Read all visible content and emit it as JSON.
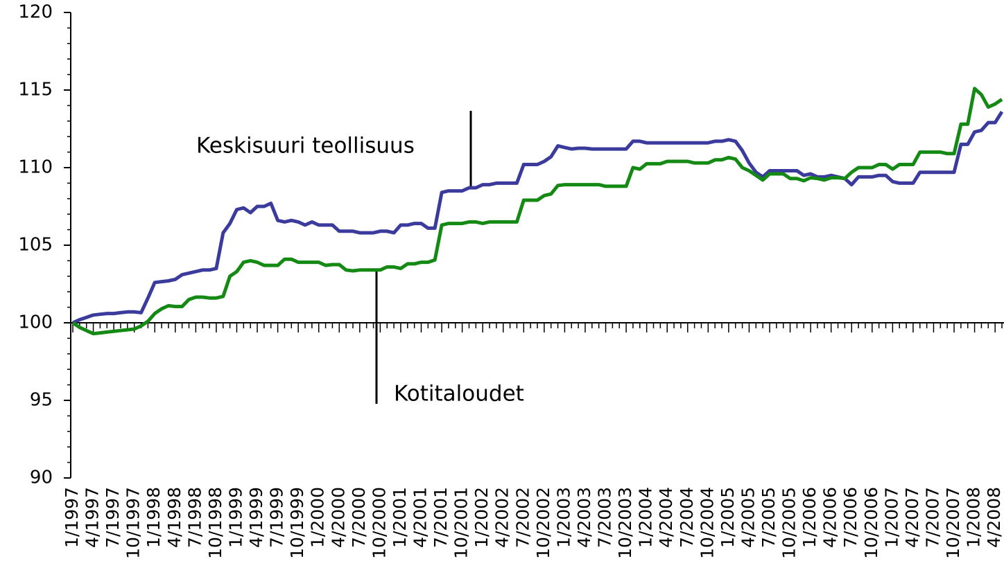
{
  "chart_data": {
    "type": "line",
    "categories": [
      "1/1997",
      null,
      null,
      "4/1997",
      null,
      null,
      "7/1997",
      null,
      null,
      "10/1997",
      null,
      null,
      "1/1998",
      null,
      null,
      "4/1998",
      null,
      null,
      "7/1998",
      null,
      null,
      "10/1998",
      null,
      null,
      "1/1999",
      null,
      null,
      "4/1999",
      null,
      null,
      "7/1999",
      null,
      null,
      "10/1999",
      null,
      null,
      "1/2000",
      null,
      null,
      "4/2000",
      null,
      null,
      "7/2000",
      null,
      null,
      "10/2000",
      null,
      null,
      "1/2001",
      null,
      null,
      "4/2001",
      null,
      null,
      "7/2001",
      null,
      null,
      "10/2001",
      null,
      null,
      "1/2002",
      null,
      null,
      "4/2002",
      null,
      null,
      "7/2002",
      null,
      null,
      "10/2002",
      null,
      null,
      "1/2003",
      null,
      null,
      "4/2003",
      null,
      null,
      "7/2003",
      null,
      null,
      "10/2003",
      null,
      null,
      "1/2004",
      null,
      null,
      "4/2004",
      null,
      null,
      "7/2004",
      null,
      null,
      "10/2004",
      null,
      null,
      "1/2005",
      null,
      null,
      "4/2005",
      null,
      null,
      "7/2005",
      null,
      null,
      "10/2005",
      null,
      null,
      "1/2006",
      null,
      null,
      "4/2006",
      null,
      null,
      "7/2006",
      null,
      null,
      "10/2006",
      null,
      null,
      "1/2007",
      null,
      null,
      "4/2007",
      null,
      null,
      "7/2007",
      null,
      null,
      "10/2007",
      null,
      null,
      "1/2008",
      null,
      null,
      "4/2008",
      null
    ],
    "series": [
      {
        "name": "Keskisuuri teollisuus",
        "color": "#3b3b9e",
        "values": [
          100,
          100.2,
          100.35,
          100.5,
          100.55,
          100.6,
          100.6,
          100.65,
          100.7,
          100.7,
          100.65,
          101.6,
          102.6,
          102.65,
          102.7,
          102.8,
          103.1,
          103.2,
          103.3,
          103.4,
          103.4,
          103.5,
          105.8,
          106.4,
          107.3,
          107.4,
          107.1,
          107.5,
          107.5,
          107.7,
          106.6,
          106.5,
          106.6,
          106.5,
          106.3,
          106.5,
          106.3,
          106.3,
          106.3,
          105.9,
          105.9,
          105.9,
          105.8,
          105.8,
          105.8,
          105.9,
          105.9,
          105.8,
          106.3,
          106.3,
          106.4,
          106.4,
          106.1,
          106.1,
          108.4,
          108.5,
          108.5,
          108.5,
          108.7,
          108.7,
          108.9,
          108.9,
          109,
          109,
          109,
          109,
          110.2,
          110.2,
          110.2,
          110.4,
          110.7,
          111.4,
          111.3,
          111.2,
          111.25,
          111.25,
          111.2,
          111.2,
          111.2,
          111.2,
          111.2,
          111.2,
          111.7,
          111.7,
          111.6,
          111.6,
          111.6,
          111.6,
          111.6,
          111.6,
          111.6,
          111.6,
          111.6,
          111.6,
          111.7,
          111.7,
          111.8,
          111.7,
          111.1,
          110.3,
          109.7,
          109.4,
          109.8,
          109.8,
          109.8,
          109.8,
          109.8,
          109.5,
          109.6,
          109.4,
          109.4,
          109.5,
          109.4,
          109.3,
          108.9,
          109.4,
          109.4,
          109.4,
          109.5,
          109.5,
          109.1,
          109,
          109,
          109,
          109.7,
          109.7,
          109.7,
          109.7,
          109.7,
          109.7,
          111.5,
          111.5,
          112.3,
          112.4,
          112.9,
          112.9,
          113.6
        ]
      },
      {
        "name": "Kotitaloudet",
        "color": "#148a14",
        "values": [
          100,
          99.7,
          99.5,
          99.3,
          99.35,
          99.4,
          99.45,
          99.5,
          99.55,
          99.6,
          99.8,
          100.1,
          100.6,
          100.9,
          101.1,
          101.05,
          101.05,
          101.5,
          101.65,
          101.65,
          101.6,
          101.6,
          101.7,
          103,
          103.3,
          103.9,
          104,
          103.9,
          103.7,
          103.7,
          103.7,
          104.1,
          104.1,
          103.9,
          103.9,
          103.9,
          103.9,
          103.7,
          103.75,
          103.75,
          103.4,
          103.35,
          103.4,
          103.4,
          103.4,
          103.4,
          103.6,
          103.6,
          103.5,
          103.8,
          103.8,
          103.9,
          103.9,
          104.05,
          106.3,
          106.4,
          106.4,
          106.4,
          106.5,
          106.5,
          106.4,
          106.5,
          106.5,
          106.5,
          106.5,
          106.5,
          107.9,
          107.9,
          107.9,
          108.2,
          108.3,
          108.85,
          108.9,
          108.9,
          108.9,
          108.9,
          108.9,
          108.9,
          108.8,
          108.8,
          108.8,
          108.8,
          110,
          109.9,
          110.25,
          110.25,
          110.25,
          110.4,
          110.4,
          110.4,
          110.4,
          110.3,
          110.3,
          110.3,
          110.5,
          110.5,
          110.65,
          110.55,
          110,
          109.8,
          109.5,
          109.2,
          109.6,
          109.6,
          109.6,
          109.3,
          109.3,
          109.15,
          109.35,
          109.3,
          109.2,
          109.35,
          109.35,
          109.3,
          109.7,
          110,
          110,
          110,
          110.2,
          110.2,
          109.9,
          110.2,
          110.2,
          110.2,
          111,
          111,
          111,
          111,
          110.9,
          110.9,
          112.8,
          112.8,
          115.1,
          114.7,
          113.9,
          114.1,
          114.4
        ]
      }
    ],
    "ylim": [
      90,
      120
    ],
    "yticks": [
      90,
      95,
      100,
      105,
      110,
      115,
      120
    ],
    "x_axis_at": 100,
    "annotations": [
      {
        "text": "Keskisuuri teollisuus",
        "series": 0
      },
      {
        "text": "Kotitaloudet",
        "series": 1
      }
    ]
  }
}
